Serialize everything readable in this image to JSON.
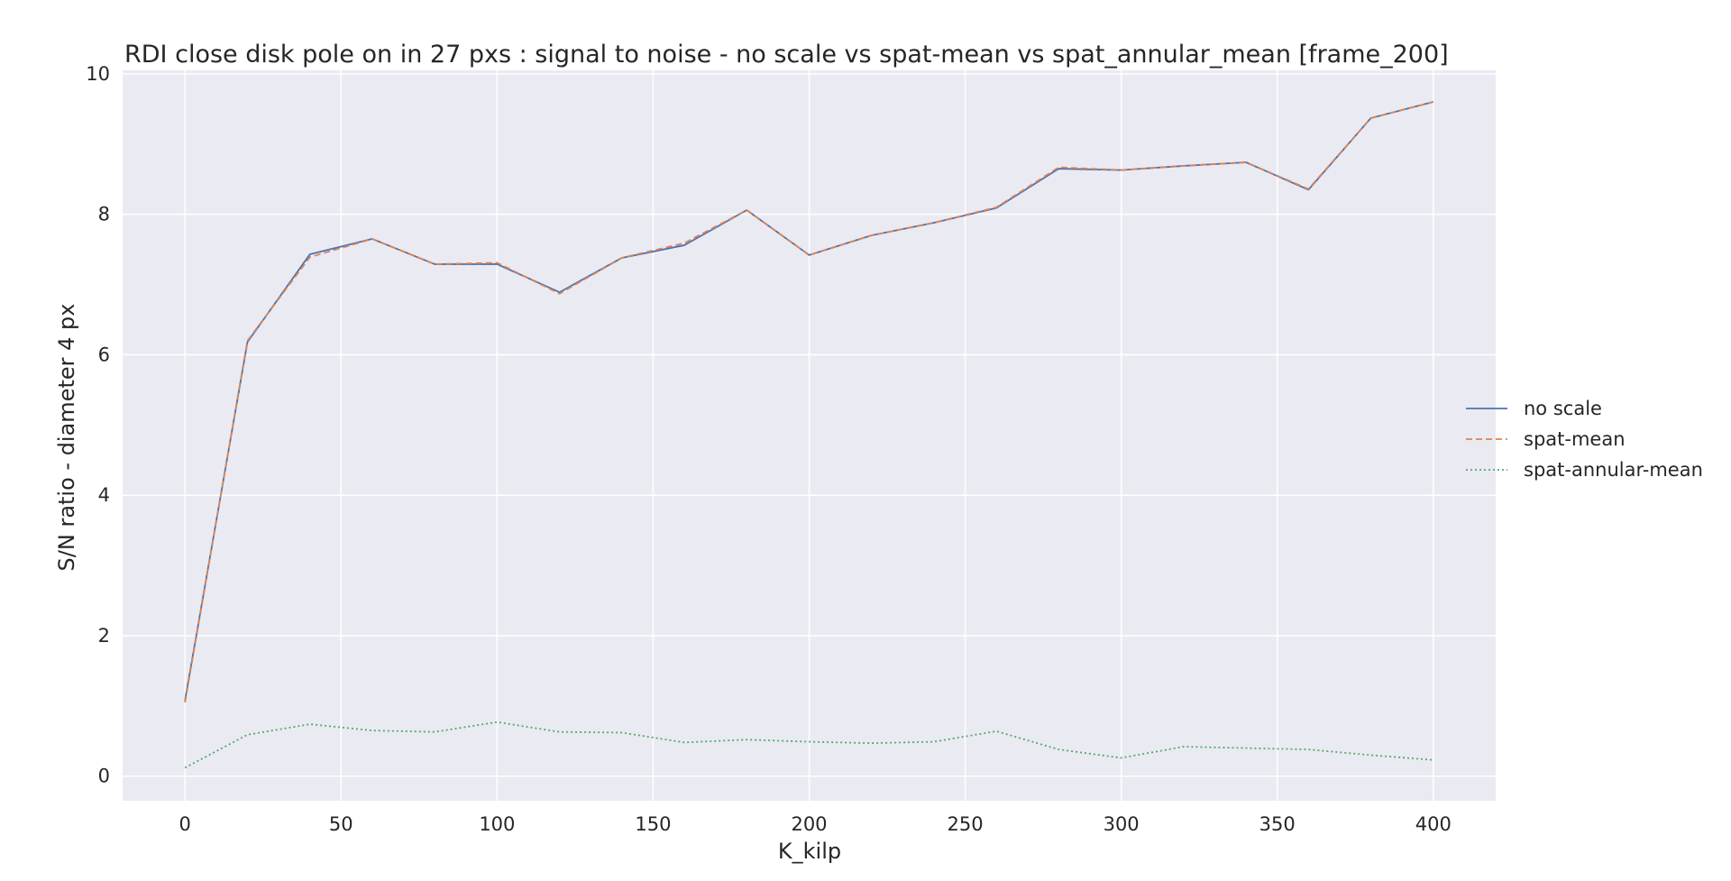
{
  "chart_data": {
    "type": "line",
    "title": "RDI close disk pole on in 27 pxs : signal to noise - no scale vs spat-mean vs spat_annular_mean [frame_200]",
    "xlabel": "K_kilp",
    "ylabel": "S/N ratio - diameter 4 px",
    "xlim": [
      -20,
      420
    ],
    "ylim": [
      -0.35,
      10.05
    ],
    "xticks": [
      0,
      50,
      100,
      150,
      200,
      250,
      300,
      350,
      400
    ],
    "yticks": [
      0,
      2,
      4,
      6,
      8,
      10
    ],
    "grid": true,
    "legend_position": "right",
    "x": [
      0,
      20,
      40,
      60,
      80,
      100,
      120,
      140,
      160,
      180,
      200,
      220,
      240,
      260,
      280,
      300,
      320,
      340,
      360,
      380,
      400
    ],
    "series": [
      {
        "name": "no scale",
        "color": "#4c72b0",
        "dash": "solid",
        "values": [
          1.08,
          6.18,
          7.43,
          7.65,
          7.29,
          7.29,
          6.89,
          7.38,
          7.56,
          8.06,
          7.42,
          7.7,
          7.88,
          8.09,
          8.65,
          8.63,
          8.69,
          8.74,
          8.35,
          9.37,
          9.6
        ]
      },
      {
        "name": "spat-mean",
        "color": "#dd8452",
        "dash": "dashed",
        "values": [
          1.05,
          6.2,
          7.39,
          7.65,
          7.29,
          7.31,
          6.87,
          7.38,
          7.59,
          8.06,
          7.42,
          7.7,
          7.88,
          8.1,
          8.67,
          8.63,
          8.69,
          8.74,
          8.36,
          9.37,
          9.6
        ]
      },
      {
        "name": "spat-annular-mean",
        "color": "#55a868",
        "dash": "dotted",
        "values": [
          0.12,
          0.59,
          0.74,
          0.65,
          0.63,
          0.77,
          0.63,
          0.62,
          0.48,
          0.52,
          0.49,
          0.47,
          0.49,
          0.64,
          0.38,
          0.26,
          0.42,
          0.4,
          0.38,
          0.3,
          0.23
        ]
      }
    ],
    "colors": {
      "plot_background": "#eaeaf2",
      "grid": "#ffffff",
      "text": "#262626"
    }
  }
}
